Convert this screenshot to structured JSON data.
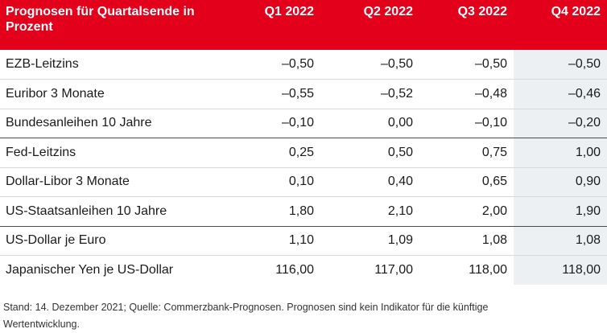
{
  "table": {
    "header": {
      "label": "Prognosen für Quartalsende in Prozent",
      "columns": [
        "Q1 2022",
        "Q2 2022",
        "Q3 2022",
        "Q4 2022"
      ]
    },
    "rows": [
      {
        "label": "EZB-Leitzins",
        "values": [
          "–0,50",
          "–0,50",
          "–0,50",
          "–0,50"
        ]
      },
      {
        "label": "Euribor 3 Monate",
        "values": [
          "–0,55",
          "–0,52",
          "–0,48",
          "–0,46"
        ]
      },
      {
        "label": "Bundesanleihen 10 Jahre",
        "values": [
          "–0,10",
          "0,00",
          "–0,10",
          "–0,20"
        ]
      },
      {
        "label": "Fed-Leitzins",
        "values": [
          "0,25",
          "0,50",
          "0,75",
          "1,00"
        ]
      },
      {
        "label": "Dollar-Libor 3 Monate",
        "values": [
          "0,10",
          "0,40",
          "0,65",
          "0,90"
        ]
      },
      {
        "label": "US-Staatsanleihen 10 Jahre",
        "values": [
          "1,80",
          "2,10",
          "2,00",
          "1,90"
        ]
      },
      {
        "label": "US-Dollar je Euro",
        "values": [
          "1,10",
          "1,09",
          "1,08",
          "1,08"
        ]
      },
      {
        "label": "Japanischer Yen je US-Dollar",
        "values": [
          "116,00",
          "117,00",
          "118,00",
          "118,00"
        ]
      }
    ]
  },
  "footnote": "Stand: 14. Dezember 2021; Quelle: Commerzbank-Prognosen. Prognosen sind kein Indikator für die künftige Wertentwicklung.",
  "colors": {
    "header_background": "#e3001b",
    "header_text": "#ffffff",
    "q4_column_background": "#edf0f3"
  }
}
